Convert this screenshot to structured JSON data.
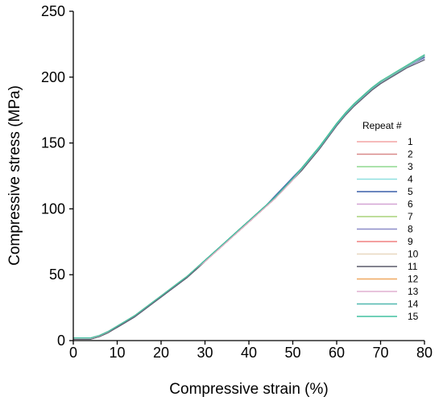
{
  "chart_data": {
    "type": "line",
    "xlabel": "Compressive strain (%)",
    "ylabel": "Compressive stress (MPa)",
    "xlim": [
      0,
      80
    ],
    "ylim": [
      0,
      250
    ],
    "x_ticks": [
      0,
      10,
      20,
      30,
      40,
      50,
      60,
      70,
      80
    ],
    "y_ticks": [
      0,
      50,
      100,
      150,
      200,
      250
    ],
    "grid": false,
    "legend_title": "Repeat #",
    "legend_position": "right",
    "x": [
      0,
      2,
      4,
      6,
      8,
      10,
      12,
      14,
      16,
      18,
      20,
      22,
      24,
      26,
      28,
      30,
      32,
      34,
      36,
      38,
      40,
      42,
      44,
      46,
      48,
      50,
      52,
      54,
      56,
      58,
      60,
      62,
      64,
      66,
      68,
      70,
      72,
      74,
      76,
      78,
      80
    ],
    "series": [
      {
        "name": "1",
        "color": "#f4a3a3",
        "values": [
          2,
          2,
          2,
          4,
          7,
          11,
          15,
          19,
          24,
          29,
          34,
          39,
          44,
          49,
          55,
          60,
          66,
          72,
          78,
          84,
          90,
          96,
          102,
          108,
          115,
          122,
          130,
          138,
          146,
          155,
          164,
          172,
          179,
          185,
          191,
          196,
          200,
          204,
          208,
          212,
          216
        ]
      },
      {
        "name": "2",
        "color": "#d98a8a",
        "values": [
          2,
          2,
          2,
          4,
          7,
          10,
          14,
          19,
          24,
          29,
          34,
          39,
          44,
          49,
          54,
          60,
          66,
          72,
          78,
          84,
          90,
          96,
          102,
          108,
          115,
          122,
          129,
          137,
          146,
          155,
          164,
          172,
          179,
          185,
          191,
          196,
          200,
          204,
          208,
          212,
          215
        ]
      },
      {
        "name": "3",
        "color": "#8fd98f",
        "values": [
          2,
          2,
          2,
          4,
          7,
          11,
          15,
          19,
          24,
          29,
          34,
          39,
          44,
          49,
          55,
          61,
          67,
          73,
          79,
          85,
          91,
          97,
          103,
          109,
          116,
          123,
          131,
          139,
          147,
          156,
          165,
          173,
          180,
          186,
          192,
          197,
          201,
          205,
          209,
          213,
          217
        ]
      },
      {
        "name": "4",
        "color": "#8fe0e0",
        "values": [
          2,
          2,
          2,
          4,
          7,
          11,
          15,
          19,
          24,
          29,
          34,
          39,
          44,
          49,
          54,
          60,
          66,
          72,
          78,
          84,
          90,
          96,
          102,
          108,
          115,
          122,
          130,
          138,
          146,
          155,
          164,
          172,
          179,
          185,
          191,
          196,
          200,
          204,
          208,
          212,
          216
        ]
      },
      {
        "name": "5",
        "color": "#3a5fa8",
        "values": [
          2,
          2,
          2,
          4,
          7,
          10,
          14,
          18,
          23,
          28,
          33,
          38,
          43,
          49,
          55,
          61,
          67,
          73,
          79,
          85,
          91,
          97,
          103,
          110,
          117,
          124,
          131,
          139,
          147,
          155,
          164,
          172,
          179,
          185,
          191,
          196,
          200,
          204,
          208,
          212,
          215
        ]
      },
      {
        "name": "6",
        "color": "#d4a5d4",
        "values": [
          2,
          2,
          2,
          4,
          7,
          11,
          15,
          19,
          24,
          29,
          34,
          39,
          44,
          49,
          55,
          60,
          66,
          72,
          78,
          84,
          90,
          96,
          102,
          108,
          115,
          122,
          130,
          138,
          146,
          155,
          164,
          172,
          179,
          185,
          191,
          196,
          200,
          204,
          208,
          212,
          216
        ]
      },
      {
        "name": "7",
        "color": "#a8d47a",
        "values": [
          2,
          2,
          2,
          4,
          7,
          11,
          15,
          19,
          24,
          29,
          34,
          39,
          44,
          49,
          55,
          61,
          67,
          73,
          79,
          85,
          91,
          97,
          103,
          109,
          116,
          123,
          131,
          139,
          147,
          156,
          165,
          173,
          180,
          186,
          192,
          197,
          201,
          205,
          209,
          213,
          217
        ]
      },
      {
        "name": "8",
        "color": "#8c8cc8",
        "values": [
          2,
          2,
          2,
          4,
          7,
          10,
          14,
          18,
          23,
          28,
          33,
          38,
          43,
          48,
          54,
          60,
          66,
          72,
          78,
          84,
          90,
          96,
          102,
          108,
          115,
          122,
          129,
          137,
          145,
          154,
          163,
          171,
          178,
          184,
          190,
          195,
          199,
          203,
          207,
          211,
          214
        ]
      },
      {
        "name": "9",
        "color": "#f08080",
        "values": [
          2,
          2,
          2,
          4,
          7,
          11,
          15,
          19,
          24,
          29,
          34,
          39,
          44,
          49,
          55,
          60,
          66,
          72,
          78,
          84,
          90,
          96,
          102,
          108,
          115,
          122,
          130,
          138,
          146,
          155,
          164,
          172,
          179,
          185,
          191,
          196,
          200,
          204,
          208,
          212,
          216
        ]
      },
      {
        "name": "10",
        "color": "#e8d8c0",
        "values": [
          2,
          2,
          2,
          4,
          7,
          11,
          15,
          19,
          24,
          29,
          34,
          39,
          44,
          49,
          55,
          60,
          66,
          72,
          78,
          84,
          90,
          96,
          102,
          108,
          115,
          122,
          130,
          138,
          146,
          155,
          164,
          172,
          179,
          185,
          191,
          196,
          200,
          204,
          208,
          212,
          216
        ]
      },
      {
        "name": "11",
        "color": "#5a5a6a",
        "values": [
          1,
          1,
          1,
          3,
          6,
          10,
          14,
          18,
          23,
          28,
          33,
          38,
          43,
          48,
          54,
          60,
          66,
          72,
          78,
          84,
          90,
          96,
          102,
          108,
          115,
          122,
          129,
          137,
          145,
          154,
          163,
          171,
          178,
          184,
          190,
          195,
          199,
          203,
          207,
          210,
          213
        ]
      },
      {
        "name": "12",
        "color": "#f0a860",
        "values": [
          2,
          2,
          2,
          4,
          7,
          11,
          15,
          19,
          24,
          29,
          34,
          39,
          44,
          49,
          55,
          60,
          66,
          72,
          78,
          84,
          90,
          96,
          102,
          108,
          115,
          122,
          130,
          138,
          146,
          155,
          164,
          172,
          179,
          185,
          191,
          196,
          200,
          204,
          208,
          212,
          216
        ]
      },
      {
        "name": "13",
        "color": "#e0b0d0",
        "values": [
          2,
          2,
          2,
          4,
          7,
          11,
          15,
          19,
          24,
          29,
          34,
          39,
          44,
          49,
          55,
          60,
          66,
          72,
          78,
          84,
          90,
          96,
          102,
          108,
          115,
          122,
          130,
          138,
          146,
          155,
          164,
          172,
          179,
          185,
          191,
          196,
          200,
          204,
          208,
          212,
          216
        ]
      },
      {
        "name": "14",
        "color": "#50b8b0",
        "values": [
          2,
          2,
          2,
          4,
          7,
          11,
          15,
          19,
          24,
          29,
          34,
          39,
          44,
          49,
          55,
          61,
          67,
          73,
          79,
          85,
          91,
          97,
          103,
          109,
          116,
          123,
          130,
          138,
          146,
          155,
          164,
          172,
          179,
          185,
          191,
          196,
          200,
          204,
          208,
          212,
          216
        ]
      },
      {
        "name": "15",
        "color": "#40c0a0",
        "values": [
          2,
          2,
          2,
          4,
          7,
          11,
          15,
          19,
          24,
          29,
          34,
          39,
          44,
          49,
          55,
          61,
          67,
          73,
          79,
          85,
          91,
          97,
          103,
          109,
          116,
          123,
          131,
          139,
          147,
          156,
          165,
          173,
          180,
          186,
          192,
          197,
          201,
          205,
          209,
          213,
          217
        ]
      }
    ]
  }
}
